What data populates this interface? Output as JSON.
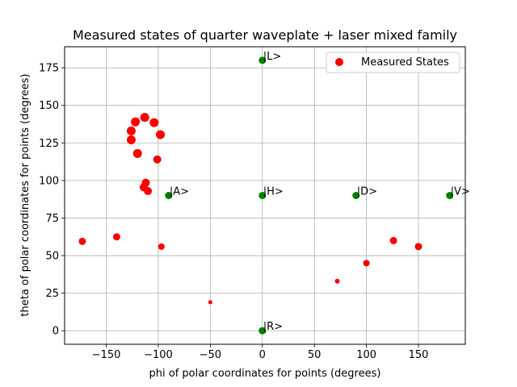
{
  "chart_data": {
    "type": "scatter",
    "title": "Measured states of quarter waveplate + laser mixed family",
    "xlabel": "phi of polar coordinates for points (degrees)",
    "ylabel": "theta of polar coordinates for points (degrees)",
    "xlim": [
      -190,
      195
    ],
    "ylim": [
      -9,
      189
    ],
    "xticks": [
      -150,
      -100,
      -50,
      0,
      50,
      100,
      150
    ],
    "yticks": [
      0,
      25,
      50,
      75,
      100,
      125,
      150,
      175
    ],
    "grid": true,
    "legend": {
      "placement": "top-right",
      "entries": [
        {
          "label": "Measured States",
          "color": "#ff0000"
        }
      ]
    },
    "series": [
      {
        "name": "Measured States",
        "color": "#ff0000",
        "points": [
          {
            "x": -113,
            "y": 142,
            "s": 5.5
          },
          {
            "x": -104,
            "y": 138.5,
            "s": 5.5
          },
          {
            "x": -122,
            "y": 139,
            "s": 5.5
          },
          {
            "x": -126,
            "y": 133,
            "s": 5.5
          },
          {
            "x": -98,
            "y": 130.5,
            "s": 5.5
          },
          {
            "x": -126,
            "y": 127,
            "s": 5.5
          },
          {
            "x": -120,
            "y": 118,
            "s": 5.5
          },
          {
            "x": -101,
            "y": 114,
            "s": 5
          },
          {
            "x": -112,
            "y": 98.5,
            "s": 5
          },
          {
            "x": -114,
            "y": 95.5,
            "s": 5
          },
          {
            "x": -110,
            "y": 93,
            "s": 5
          },
          {
            "x": -173,
            "y": 59.5,
            "s": 4.5
          },
          {
            "x": -140,
            "y": 62.5,
            "s": 4.5
          },
          {
            "x": -97,
            "y": 56,
            "s": 4
          },
          {
            "x": -50,
            "y": 19,
            "s": 2.5
          },
          {
            "x": 72,
            "y": 33,
            "s": 3
          },
          {
            "x": 100,
            "y": 45,
            "s": 4
          },
          {
            "x": 126,
            "y": 60,
            "s": 4.5
          },
          {
            "x": 150,
            "y": 56,
            "s": 4.5
          }
        ]
      },
      {
        "name": "",
        "color": "#008000",
        "points": [
          {
            "x": 0,
            "y": 180,
            "label": "|L>"
          },
          {
            "x": 0,
            "y": 90,
            "label": "|H>"
          },
          {
            "x": -90,
            "y": 90,
            "label": "|A>"
          },
          {
            "x": 90,
            "y": 90,
            "label": "|D>"
          },
          {
            "x": 180,
            "y": 90,
            "label": "|V>"
          },
          {
            "x": 0,
            "y": 0,
            "label": "|R>"
          }
        ]
      }
    ]
  }
}
